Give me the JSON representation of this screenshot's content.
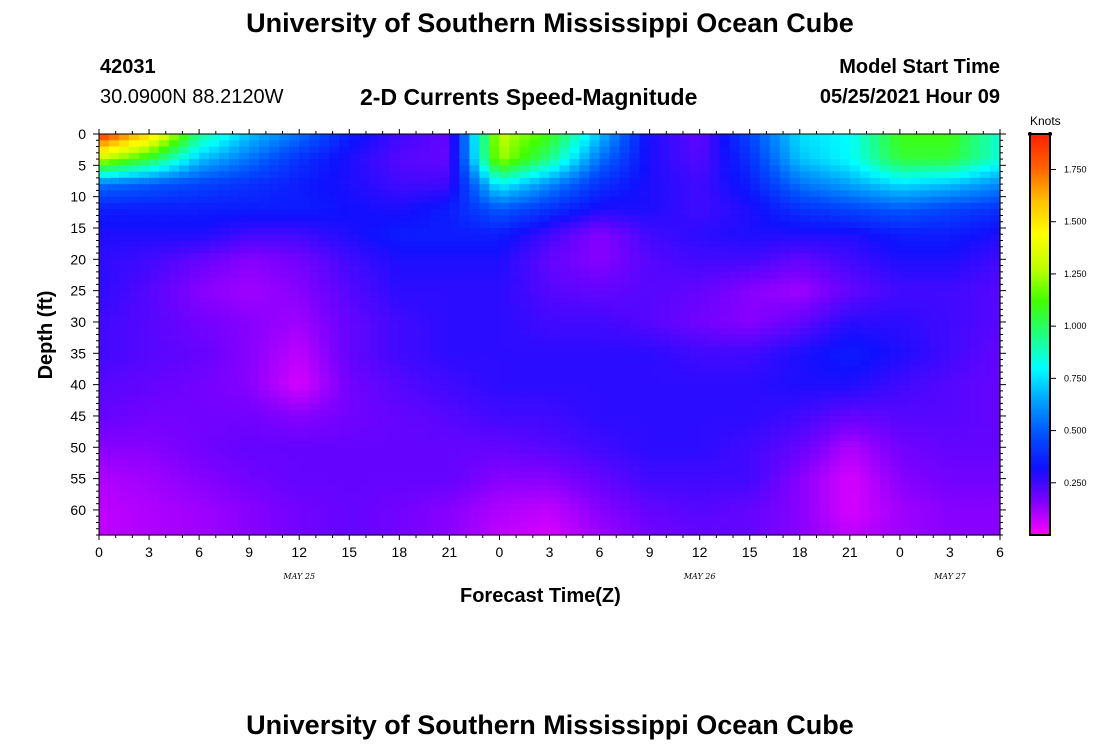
{
  "header": {
    "title": "University of Southern Mississippi Ocean Cube",
    "station_id": "42031",
    "location": "30.0900N  88.2120W",
    "subtitle": "2-D Currents Speed-Magnitude",
    "model_start_label": "Model Start Time",
    "model_start_value": "05/25/2021 Hour 09"
  },
  "footer": {
    "title": "University of Southern Mississippi Ocean Cube"
  },
  "colors": {
    "scale": [
      "#ff00ff",
      "#8000ff",
      "#1010ff",
      "#0050ff",
      "#00a0ff",
      "#00ffff",
      "#20ff80",
      "#40ff00",
      "#c0ff00",
      "#ffff00",
      "#ffc000",
      "#ff6000",
      "#ff2000"
    ]
  },
  "chart_data": {
    "type": "heatmap",
    "title": "2-D Currents Speed-Magnitude",
    "xlabel": "Forecast Time(Z)",
    "ylabel": "Depth (ft)",
    "x_ticks": [
      "0",
      "3",
      "6",
      "9",
      "12",
      "15",
      "18",
      "21",
      "0",
      "3",
      "6",
      "9",
      "12",
      "15",
      "18",
      "21",
      "0",
      "3",
      "6"
    ],
    "date_labels": [
      {
        "label": "MAY 25",
        "tick_index": 4
      },
      {
        "label": "MAY 26",
        "tick_index": 12
      },
      {
        "label": "MAY 27",
        "tick_index": 17
      }
    ],
    "y_ticks": [
      0,
      5,
      10,
      15,
      20,
      25,
      30,
      35,
      40,
      45,
      50,
      55,
      60
    ],
    "ylim": [
      0,
      64
    ],
    "colorbar": {
      "unit_label": "Knots",
      "range": [
        0,
        1.92
      ],
      "ticks": [
        "0.250",
        "0.500",
        "0.750",
        "1.000",
        "1.250",
        "1.500",
        "1.750"
      ],
      "tick_values": [
        0.25,
        0.5,
        0.75,
        1.0,
        1.25,
        1.5,
        1.75
      ]
    },
    "depth_grid": [
      0,
      4,
      8,
      12,
      16,
      20,
      25,
      30,
      35,
      40,
      45,
      50,
      55,
      60,
      64
    ],
    "speed_knots": [
      [
        1.9,
        1.55,
        0.95,
        0.7,
        0.55,
        0.35,
        0.25,
        0.2,
        1.3,
        1.1,
        0.7,
        0.3,
        0.2,
        0.45,
        0.75,
        0.8,
        1.1,
        1.1,
        0.85
      ],
      [
        1.3,
        1.05,
        0.7,
        0.55,
        0.4,
        0.3,
        0.22,
        0.2,
        1.25,
        0.95,
        0.55,
        0.3,
        0.22,
        0.4,
        0.7,
        0.8,
        1.05,
        1.05,
        0.85
      ],
      [
        0.55,
        0.5,
        0.45,
        0.4,
        0.35,
        0.3,
        0.25,
        0.25,
        0.8,
        0.6,
        0.4,
        0.3,
        0.25,
        0.35,
        0.55,
        0.65,
        0.75,
        0.7,
        0.6
      ],
      [
        0.35,
        0.35,
        0.35,
        0.35,
        0.35,
        0.32,
        0.3,
        0.35,
        0.5,
        0.4,
        0.3,
        0.3,
        0.25,
        0.3,
        0.4,
        0.45,
        0.5,
        0.45,
        0.4
      ],
      [
        0.3,
        0.3,
        0.3,
        0.25,
        0.25,
        0.3,
        0.35,
        0.35,
        0.35,
        0.25,
        0.15,
        0.25,
        0.28,
        0.3,
        0.3,
        0.3,
        0.35,
        0.35,
        0.3
      ],
      [
        0.28,
        0.25,
        0.2,
        0.15,
        0.18,
        0.25,
        0.3,
        0.3,
        0.3,
        0.2,
        0.15,
        0.22,
        0.25,
        0.25,
        0.2,
        0.25,
        0.3,
        0.3,
        0.25
      ],
      [
        0.28,
        0.22,
        0.15,
        0.12,
        0.15,
        0.22,
        0.28,
        0.28,
        0.28,
        0.22,
        0.2,
        0.22,
        0.2,
        0.15,
        0.12,
        0.2,
        0.25,
        0.25,
        0.22
      ],
      [
        0.25,
        0.22,
        0.18,
        0.15,
        0.12,
        0.2,
        0.25,
        0.28,
        0.28,
        0.25,
        0.25,
        0.22,
        0.18,
        0.15,
        0.2,
        0.28,
        0.28,
        0.25,
        0.22
      ],
      [
        0.25,
        0.22,
        0.2,
        0.15,
        0.08,
        0.2,
        0.25,
        0.28,
        0.28,
        0.28,
        0.28,
        0.28,
        0.25,
        0.25,
        0.3,
        0.35,
        0.3,
        0.25,
        0.2
      ],
      [
        0.22,
        0.2,
        0.18,
        0.15,
        0.05,
        0.18,
        0.22,
        0.25,
        0.28,
        0.28,
        0.28,
        0.28,
        0.28,
        0.28,
        0.3,
        0.3,
        0.25,
        0.22,
        0.2
      ],
      [
        0.2,
        0.18,
        0.18,
        0.18,
        0.15,
        0.18,
        0.2,
        0.22,
        0.25,
        0.25,
        0.28,
        0.28,
        0.28,
        0.28,
        0.25,
        0.2,
        0.22,
        0.22,
        0.2
      ],
      [
        0.15,
        0.15,
        0.18,
        0.2,
        0.2,
        0.2,
        0.2,
        0.2,
        0.2,
        0.22,
        0.25,
        0.28,
        0.28,
        0.25,
        0.2,
        0.1,
        0.18,
        0.2,
        0.2
      ],
      [
        0.1,
        0.12,
        0.15,
        0.18,
        0.2,
        0.2,
        0.2,
        0.2,
        0.15,
        0.15,
        0.2,
        0.25,
        0.25,
        0.25,
        0.15,
        0.05,
        0.15,
        0.18,
        0.18
      ],
      [
        0.08,
        0.1,
        0.12,
        0.15,
        0.18,
        0.2,
        0.18,
        0.15,
        0.1,
        0.08,
        0.15,
        0.2,
        0.22,
        0.2,
        0.15,
        0.05,
        0.12,
        0.15,
        0.15
      ],
      [
        0.08,
        0.1,
        0.12,
        0.15,
        0.18,
        0.2,
        0.18,
        0.15,
        0.08,
        0.05,
        0.12,
        0.18,
        0.2,
        0.2,
        0.15,
        0.08,
        0.12,
        0.15,
        0.15
      ]
    ]
  }
}
